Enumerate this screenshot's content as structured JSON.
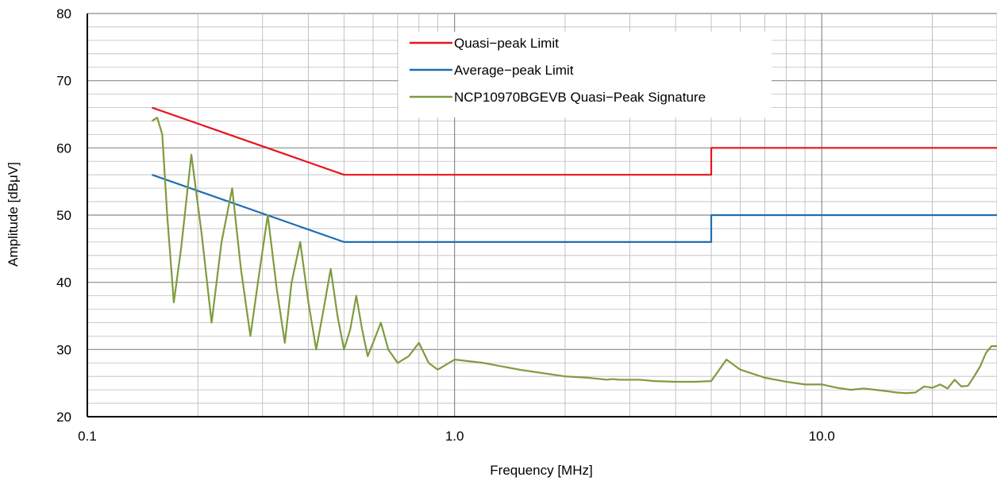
{
  "chart_data": {
    "type": "line",
    "title": "",
    "xlabel": "Frequency [MHz]",
    "ylabel": "Amplitude [dBμV]",
    "x_scale": "log",
    "xlim": [
      0.1,
      30
    ],
    "ylim": [
      20,
      80
    ],
    "x_ticks": [
      {
        "value": 0.1,
        "label": "0.1"
      },
      {
        "value": 1,
        "label": "1.0"
      },
      {
        "value": 10,
        "label": "10.0"
      }
    ],
    "y_ticks": [
      {
        "value": 20,
        "label": "20"
      },
      {
        "value": 30,
        "label": "30"
      },
      {
        "value": 40,
        "label": "40"
      },
      {
        "value": 50,
        "label": "50"
      },
      {
        "value": 60,
        "label": "60"
      },
      {
        "value": 70,
        "label": "70"
      },
      {
        "value": 80,
        "label": "80"
      }
    ],
    "grid": true,
    "legend_position": "top-center",
    "series": [
      {
        "name": "Quasi−peak Limit",
        "color": "#e8141c",
        "x": [
          0.15,
          0.5,
          5.0,
          5.0,
          30
        ],
        "y": [
          66,
          56,
          56,
          60,
          60
        ]
      },
      {
        "name": "Average−peak Limit",
        "color": "#1f6eb4",
        "x": [
          0.15,
          0.5,
          5.0,
          5.0,
          30
        ],
        "y": [
          56,
          46,
          46,
          50,
          50
        ]
      },
      {
        "name": "NCP10970BGEVB Quasi−Peak Signature",
        "color": "#7f9b3e",
        "x": [
          0.15,
          0.155,
          0.16,
          0.165,
          0.172,
          0.18,
          0.192,
          0.205,
          0.218,
          0.232,
          0.248,
          0.262,
          0.278,
          0.295,
          0.31,
          0.328,
          0.345,
          0.36,
          0.38,
          0.4,
          0.42,
          0.44,
          0.46,
          0.48,
          0.5,
          0.52,
          0.54,
          0.56,
          0.58,
          0.6,
          0.63,
          0.66,
          0.7,
          0.75,
          0.8,
          0.85,
          0.9,
          1.0,
          1.2,
          1.5,
          2.0,
          2.3,
          2.5,
          2.6,
          2.7,
          2.8,
          2.9,
          3.0,
          3.2,
          3.5,
          4.0,
          4.5,
          5.0,
          5.5,
          6.0,
          7.0,
          8.0,
          9.0,
          10.0,
          11.0,
          12.0,
          13.0,
          14.0,
          15.0,
          16.0,
          17.0,
          18.0,
          19.0,
          20.0,
          21.0,
          22.0,
          23.0,
          24.0,
          25.0,
          26.0,
          27.0,
          28.0,
          29.0,
          30.0
        ],
        "y": [
          64,
          64.5,
          62,
          50,
          37,
          45,
          59,
          47,
          34,
          46,
          54,
          42,
          32,
          42,
          50,
          39,
          31,
          40,
          46,
          37,
          30,
          36,
          42,
          35,
          30,
          33,
          38,
          33,
          29,
          31,
          34,
          30,
          28,
          29,
          31,
          28,
          27,
          28.5,
          28,
          27,
          26,
          25.8,
          25.6,
          25.5,
          25.6,
          25.5,
          25.5,
          25.5,
          25.5,
          25.3,
          25.2,
          25.2,
          25.3,
          28.5,
          27,
          25.8,
          25.2,
          24.8,
          24.8,
          24.3,
          24,
          24.2,
          24,
          23.8,
          23.6,
          23.5,
          23.6,
          24.5,
          24.3,
          24.8,
          24.2,
          25.5,
          24.5,
          24.6,
          26,
          27.5,
          29.5,
          30.5,
          30.5
        ]
      }
    ]
  }
}
